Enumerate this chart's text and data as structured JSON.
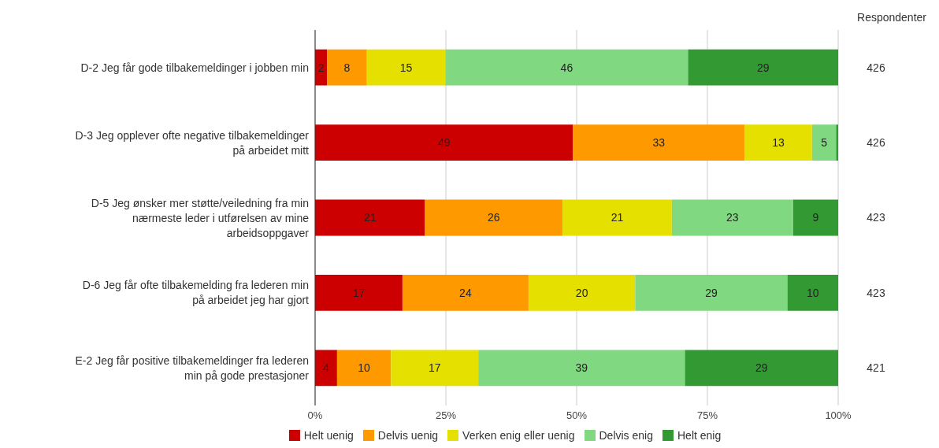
{
  "chart_data": {
    "type": "bar",
    "orientation": "horizontal",
    "stacked": true,
    "categories": [
      "D-2 Jeg får gode tilbakemeldinger i jobben min",
      "D-3 Jeg opplever ofte negative tilbakemeldinger på arbeidet mitt",
      "D-5 Jeg ønsker mer støtte/veiledning fra min nærmeste leder i utførelsen av mine arbeidsoppgaver",
      "D-6 Jeg får ofte tilbakemelding fra lederen min på arbeidet jeg har gjort",
      "E-2 Jeg får positive tilbakemeldinger fra lederen min på gode prestasjoner"
    ],
    "series": [
      {
        "name": "Helt uenig",
        "color": "#cc0000",
        "values": [
          2.3,
          49.3,
          21.0,
          16.7,
          4.2
        ],
        "value_labels": [
          "2",
          "49",
          "21",
          "17",
          "4"
        ]
      },
      {
        "name": "Delvis uenig",
        "color": "#ff9900",
        "values": [
          7.6,
          32.8,
          26.3,
          24.1,
          10.3
        ],
        "value_labels": [
          "8",
          "33",
          "26",
          "24",
          "10"
        ]
      },
      {
        "name": "Verken enig eller uenig",
        "color": "#e6e000",
        "values": [
          15.0,
          12.9,
          20.9,
          20.4,
          16.7
        ],
        "value_labels": [
          "15",
          "13",
          "21",
          "20",
          "17"
        ]
      },
      {
        "name": "Delvis enig",
        "color": "#80d880",
        "values": [
          46.4,
          4.6,
          23.2,
          29.1,
          39.5
        ],
        "value_labels": [
          "46",
          "5",
          "23",
          "29",
          "39"
        ]
      },
      {
        "name": "Helt enig",
        "color": "#339933",
        "values": [
          28.7,
          0.4,
          8.6,
          9.7,
          29.3
        ],
        "value_labels": [
          "29",
          null,
          "9",
          "10",
          "29"
        ]
      }
    ],
    "xlim": [
      0,
      100
    ],
    "xticks": [
      {
        "value": 0,
        "label": "0%"
      },
      {
        "value": 25,
        "label": "25%"
      },
      {
        "value": 50,
        "label": "50%"
      },
      {
        "value": 75,
        "label": "75%"
      },
      {
        "value": 100,
        "label": "100%"
      }
    ],
    "grid": "x",
    "legend": "bottom",
    "annotations": [
      "Respondenter",
      "426",
      "426",
      "423",
      "423",
      "421"
    ]
  }
}
